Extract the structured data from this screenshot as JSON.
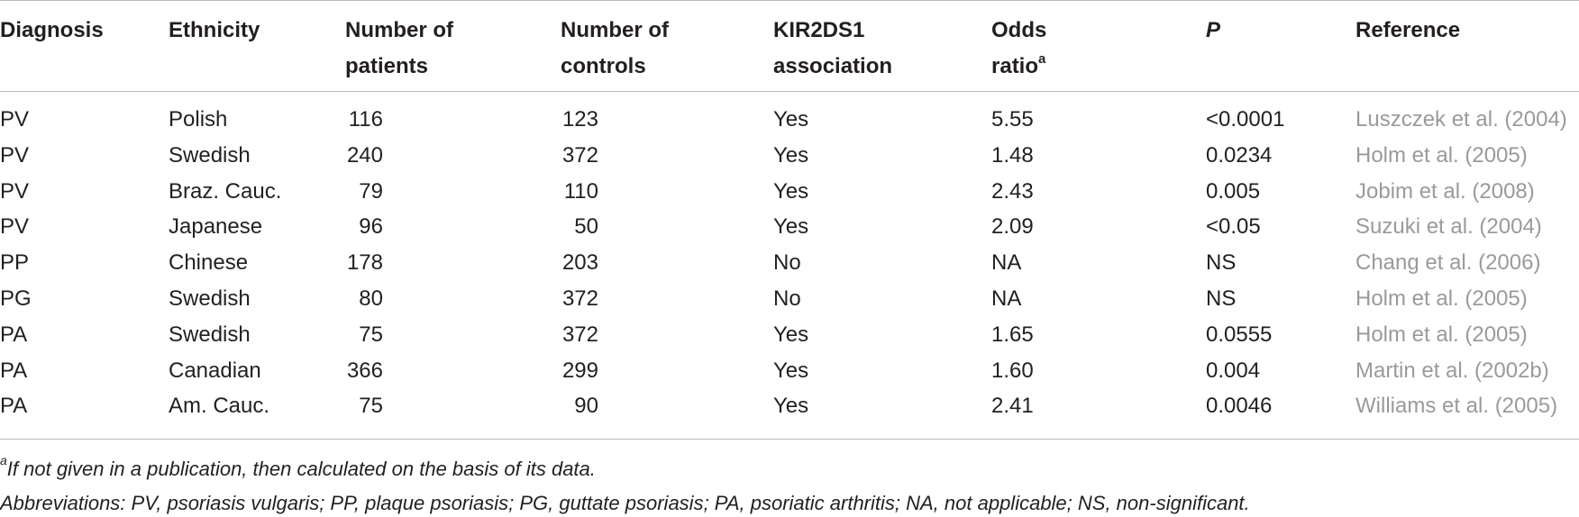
{
  "table": {
    "headers": {
      "diagnosis": "Diagnosis",
      "ethnicity": "Ethnicity",
      "patients_l1": "Number of",
      "patients_l2": "patients",
      "controls_l1": "Number of",
      "controls_l2": "controls",
      "kir_l1": "KIR2DS1",
      "kir_l2": "association",
      "odds_l1": "Odds",
      "odds_l2": "ratio",
      "odds_sup": "a",
      "p": "P",
      "reference": "Reference"
    },
    "rows": [
      {
        "diagnosis": "PV",
        "ethnicity": "Polish",
        "patients": "116",
        "controls": "123",
        "kir": "Yes",
        "odds": "5.55",
        "p": "<0.0001",
        "reference": "Luszczek et al. (2004)"
      },
      {
        "diagnosis": "PV",
        "ethnicity": "Swedish",
        "patients": "240",
        "controls": "372",
        "kir": "Yes",
        "odds": "1.48",
        "p": "0.0234",
        "reference": "Holm et al. (2005)"
      },
      {
        "diagnosis": "PV",
        "ethnicity": "Braz. Cauc.",
        "patients": "79",
        "controls": "110",
        "kir": "Yes",
        "odds": "2.43",
        "p": "0.005",
        "reference": "Jobim et al. (2008)"
      },
      {
        "diagnosis": "PV",
        "ethnicity": "Japanese",
        "patients": "96",
        "controls": "50",
        "kir": "Yes",
        "odds": "2.09",
        "p": "<0.05",
        "reference": "Suzuki et al. (2004)"
      },
      {
        "diagnosis": "PP",
        "ethnicity": "Chinese",
        "patients": "178",
        "controls": "203",
        "kir": "No",
        "odds": "NA",
        "p": "NS",
        "reference": "Chang et al. (2006)"
      },
      {
        "diagnosis": "PG",
        "ethnicity": "Swedish",
        "patients": "80",
        "controls": "372",
        "kir": "No",
        "odds": "NA",
        "p": "NS",
        "reference": "Holm et al. (2005)"
      },
      {
        "diagnosis": "PA",
        "ethnicity": "Swedish",
        "patients": "75",
        "controls": "372",
        "kir": "Yes",
        "odds": "1.65",
        "p": "0.0555",
        "reference": "Holm et al. (2005)"
      },
      {
        "diagnosis": "PA",
        "ethnicity": "Canadian",
        "patients": "366",
        "controls": "299",
        "kir": "Yes",
        "odds": "1.60",
        "p": "0.004",
        "reference": "Martin et al. (2002b)"
      },
      {
        "diagnosis": "PA",
        "ethnicity": "Am. Cauc.",
        "patients": "75",
        "controls": "90",
        "kir": "Yes",
        "odds": "2.41",
        "p": "0.0046",
        "reference": "Williams et al. (2005)"
      }
    ]
  },
  "footnotes": {
    "a_mark": "a",
    "a_text": "If not given in a publication, then calculated on the basis of its data.",
    "abbreviations": "Abbreviations: PV, psoriasis vulgaris; PP, plaque psoriasis; PG, guttate psoriasis; PA, psoriatic arthritis; NA, not applicable; NS, non-significant."
  },
  "colors": {
    "text": "#231f20",
    "reference_link": "#9a9a9a",
    "rule": "#b9b9b9"
  }
}
